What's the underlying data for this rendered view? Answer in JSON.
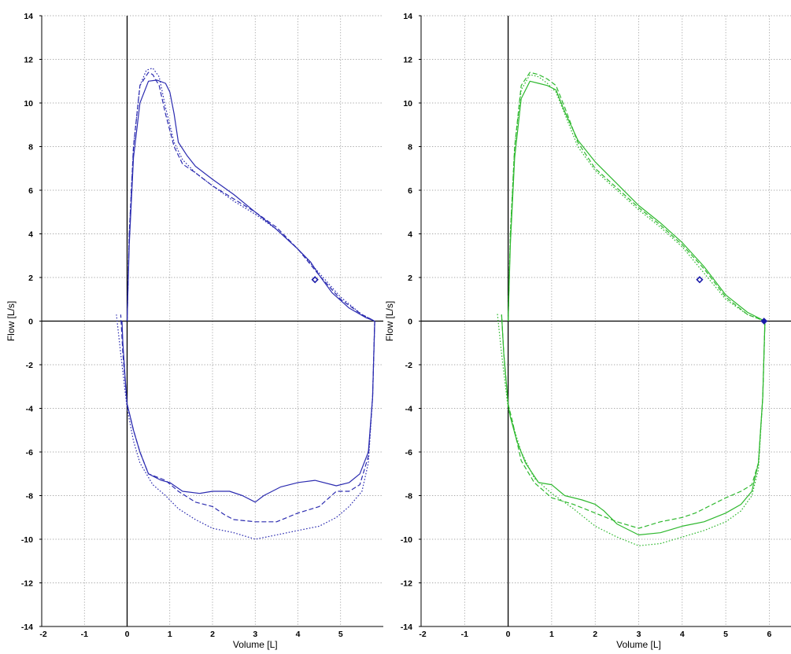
{
  "chart_data": [
    {
      "type": "line",
      "color": "#2b2bb0",
      "xlabel": "Volume [L]",
      "ylabel": "Flow [L/s]",
      "xlim": [
        -2,
        6
      ],
      "ylim": [
        -14,
        14
      ],
      "xticks": [
        "-2",
        "-1",
        "0",
        "1",
        "2",
        "3",
        "4",
        "5"
      ],
      "yticks": [
        "14",
        "12",
        "10",
        "8",
        "6",
        "4",
        "2",
        "0",
        "-2",
        "-4",
        "-6",
        "-8",
        "-10",
        "-12",
        "-14"
      ],
      "grid": true,
      "series": [
        {
          "style": "solid",
          "x": [
            0,
            0.05,
            0.15,
            0.3,
            0.5,
            0.7,
            0.9,
            1.0,
            1.1,
            1.2,
            1.4,
            1.6,
            2.0,
            2.5,
            3.0,
            3.5,
            4.0,
            4.3,
            4.5,
            4.8,
            5.2,
            5.6,
            5.8
          ],
          "y": [
            0,
            3.5,
            7.5,
            10,
            11,
            11.05,
            10.9,
            10.5,
            9.5,
            8.2,
            7.6,
            7.1,
            6.5,
            5.8,
            5.0,
            4.2,
            3.3,
            2.7,
            2.1,
            1.3,
            0.6,
            0.15,
            0
          ]
        },
        {
          "style": "dashed",
          "x": [
            0,
            0.05,
            0.15,
            0.3,
            0.5,
            0.6,
            0.75,
            0.9,
            1.1,
            1.3,
            1.6,
            2.0,
            2.5,
            3.0,
            3.5,
            4.0,
            4.5,
            5.0,
            5.5,
            5.8
          ],
          "y": [
            0,
            4,
            8,
            10.8,
            11.4,
            11.3,
            10.8,
            9.5,
            8.0,
            7.2,
            6.8,
            6.2,
            5.6,
            5.0,
            4.3,
            3.3,
            2.1,
            1.0,
            0.3,
            0
          ]
        },
        {
          "style": "dotted",
          "x": [
            0,
            0.05,
            0.15,
            0.3,
            0.45,
            0.6,
            0.75,
            0.9,
            1.1,
            1.3,
            1.6,
            2.0,
            2.5,
            3.0,
            3.5,
            4.0,
            4.5,
            5.0,
            5.5,
            5.8
          ],
          "y": [
            0,
            4,
            8,
            10.8,
            11.5,
            11.6,
            11.2,
            9.8,
            8.2,
            7.4,
            6.8,
            6.2,
            5.5,
            4.9,
            4.2,
            3.3,
            2.2,
            1.1,
            0.3,
            0
          ]
        },
        {
          "style": "solid",
          "x": [
            5.8,
            5.75,
            5.65,
            5.45,
            5.2,
            4.9,
            4.4,
            4.0,
            3.6,
            3.2,
            3.0,
            2.7,
            2.4,
            2.0,
            1.7,
            1.3,
            1.0,
            0.8,
            0.5,
            0.3,
            0.15,
            0.05,
            0,
            -0.05,
            -0.1,
            -0.12
          ],
          "y": [
            0,
            -3.5,
            -6.0,
            -7.0,
            -7.4,
            -7.55,
            -7.3,
            -7.4,
            -7.6,
            -8.0,
            -8.3,
            -8.0,
            -7.8,
            -7.8,
            -7.9,
            -7.8,
            -7.4,
            -7.3,
            -7.0,
            -6.0,
            -5.0,
            -4.2,
            -3.8,
            -2.5,
            -1.0,
            0
          ]
        },
        {
          "style": "dashed",
          "x": [
            5.8,
            5.75,
            5.65,
            5.45,
            5.2,
            4.9,
            4.5,
            4.0,
            3.5,
            3.0,
            2.5,
            2.3,
            2.0,
            1.6,
            1.2,
            0.9,
            0.5,
            0.3,
            0.15,
            0.05,
            0,
            -0.1,
            -0.15
          ],
          "y": [
            0,
            -3.5,
            -6.2,
            -7.5,
            -7.8,
            -7.8,
            -8.5,
            -8.8,
            -9.2,
            -9.2,
            -9.1,
            -8.9,
            -8.5,
            -8.3,
            -7.8,
            -7.3,
            -7.0,
            -6.0,
            -5.0,
            -4.2,
            -3.8,
            -1.5,
            0.3
          ]
        },
        {
          "style": "dotted",
          "x": [
            5.8,
            5.75,
            5.65,
            5.5,
            5.2,
            4.9,
            4.5,
            4.0,
            3.5,
            3.0,
            2.5,
            2.0,
            1.6,
            1.2,
            0.9,
            0.6,
            0.3,
            0.15,
            0.05,
            0,
            -0.15,
            -0.25
          ],
          "y": [
            0,
            -3.5,
            -6.5,
            -7.8,
            -8.5,
            -9.0,
            -9.4,
            -9.6,
            -9.8,
            -10.0,
            -9.7,
            -9.5,
            -9.1,
            -8.6,
            -8.0,
            -7.5,
            -6.5,
            -5.5,
            -4.5,
            -4.0,
            -1.5,
            0.3
          ]
        }
      ],
      "marker": {
        "x": 4.4,
        "y": 1.9,
        "color": "#1a1aa8"
      }
    },
    {
      "type": "line",
      "color": "#2eb82e",
      "xlabel": "Volume [L]",
      "ylabel": "Flow [L/s]",
      "xlim": [
        -2,
        6
      ],
      "ylim": [
        -14,
        14
      ],
      "xticks": [
        "-2",
        "-1",
        "0",
        "1",
        "2",
        "3",
        "4",
        "5",
        "6"
      ],
      "yticks": [
        "14",
        "12",
        "10",
        "8",
        "6",
        "4",
        "2",
        "0",
        "-2",
        "-4",
        "-6",
        "-8",
        "-10",
        "-12",
        "-14"
      ],
      "grid": true,
      "series": [
        {
          "style": "solid",
          "x": [
            0,
            0.05,
            0.15,
            0.3,
            0.5,
            0.7,
            0.9,
            1.1,
            1.3,
            1.6,
            2.0,
            2.5,
            3.0,
            3.5,
            4.0,
            4.5,
            5.0,
            5.5,
            5.9
          ],
          "y": [
            0,
            3.5,
            7.5,
            10.2,
            11.0,
            10.9,
            10.8,
            10.6,
            9.6,
            8.3,
            7.3,
            6.3,
            5.3,
            4.5,
            3.6,
            2.5,
            1.2,
            0.4,
            0
          ]
        },
        {
          "style": "dashed",
          "x": [
            0,
            0.05,
            0.15,
            0.3,
            0.5,
            0.7,
            0.9,
            1.1,
            1.3,
            1.6,
            2.0,
            2.5,
            3.0,
            3.5,
            4.0,
            4.5,
            5.0,
            5.5,
            5.9
          ],
          "y": [
            0,
            4,
            8,
            10.8,
            11.4,
            11.3,
            11.1,
            10.8,
            9.8,
            8.2,
            7.0,
            6.1,
            5.2,
            4.4,
            3.5,
            2.4,
            1.1,
            0.3,
            0
          ]
        },
        {
          "style": "dotted",
          "x": [
            0,
            0.05,
            0.15,
            0.3,
            0.5,
            0.7,
            0.9,
            1.1,
            1.3,
            1.6,
            2.0,
            2.5,
            3.0,
            3.5,
            4.0,
            4.5,
            5.0,
            5.5,
            5.9
          ],
          "y": [
            0,
            4,
            8,
            10.6,
            11.3,
            11.2,
            10.9,
            10.5,
            9.5,
            8.0,
            6.9,
            6.0,
            5.1,
            4.3,
            3.4,
            2.2,
            1.0,
            0.3,
            0
          ]
        },
        {
          "style": "solid",
          "x": [
            5.9,
            5.85,
            5.75,
            5.6,
            5.35,
            5.0,
            4.5,
            4.0,
            3.5,
            3.0,
            2.5,
            2.2,
            2.0,
            1.7,
            1.3,
            1.0,
            0.7,
            0.4,
            0.2,
            0.05,
            0,
            -0.1,
            -0.15
          ],
          "y": [
            0,
            -3.5,
            -6.5,
            -7.8,
            -8.4,
            -8.8,
            -9.2,
            -9.4,
            -9.7,
            -9.8,
            -9.3,
            -8.7,
            -8.4,
            -8.2,
            -8.0,
            -7.5,
            -7.4,
            -6.5,
            -5.5,
            -4.4,
            -3.8,
            -1.5,
            0.3
          ]
        },
        {
          "style": "dashed",
          "x": [
            5.9,
            5.85,
            5.75,
            5.6,
            5.35,
            5.0,
            4.6,
            4.3,
            4.0,
            3.5,
            3.0,
            2.5,
            2.0,
            1.5,
            1.0,
            0.6,
            0.3,
            0.1,
            0,
            -0.1,
            -0.15
          ],
          "y": [
            0,
            -3.5,
            -6.5,
            -7.5,
            -7.8,
            -8.1,
            -8.5,
            -8.8,
            -9.0,
            -9.2,
            -9.5,
            -9.2,
            -8.8,
            -8.4,
            -8.1,
            -7.4,
            -6.4,
            -4.6,
            -3.8,
            -1.5,
            0.3
          ]
        },
        {
          "style": "dotted",
          "x": [
            5.9,
            5.85,
            5.75,
            5.6,
            5.35,
            5.0,
            4.5,
            4.0,
            3.5,
            3.0,
            2.5,
            2.0,
            1.5,
            1.0,
            0.6,
            0.3,
            0.1,
            0,
            -0.15,
            -0.25
          ],
          "y": [
            0,
            -3.5,
            -6.8,
            -8.0,
            -8.7,
            -9.2,
            -9.6,
            -9.9,
            -10.2,
            -10.3,
            -9.9,
            -9.4,
            -8.6,
            -7.9,
            -7.2,
            -6.0,
            -4.7,
            -4.0,
            -1.5,
            0.4
          ]
        }
      ],
      "marker": {
        "x": 4.4,
        "y": 1.9,
        "color": "#1a1aa8"
      },
      "end_marker": {
        "x": 5.88,
        "y": 0,
        "color": "#1a1aa8"
      }
    }
  ]
}
